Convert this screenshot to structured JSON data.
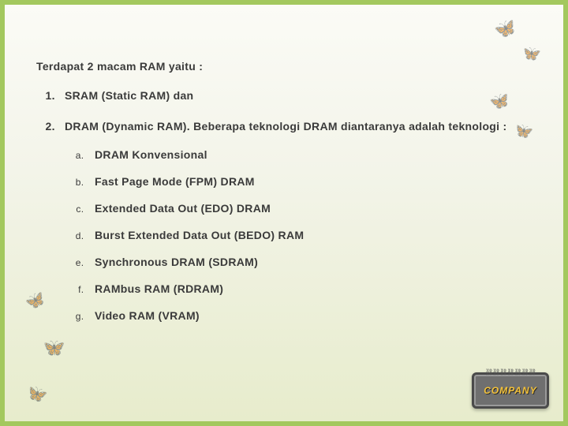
{
  "heading": "Terdapat 2 macam RAM yaitu :",
  "main_items": [
    {
      "text": "SRAM (Static RAM) dan"
    },
    {
      "text": "DRAM (Dynamic RAM). Beberapa teknologi DRAM diantaranya adalah teknologi :"
    }
  ],
  "sub_items": [
    {
      "text": "DRAM Konvensional"
    },
    {
      "text": "Fast Page Mode (FPM) DRAM"
    },
    {
      "text": "Extended Data Out (EDO) DRAM"
    },
    {
      "text": "Burst Extended Data Out (BEDO) RAM"
    },
    {
      "text": "Synchronous DRAM (SDRAM)"
    },
    {
      "text": "RAMbus RAM (RDRAM)"
    },
    {
      "text": "Video RAM (VRAM)"
    }
  ],
  "badge_label": "COMPANY",
  "colors": {
    "border": "#a3c85e",
    "bg_top": "#fbfbf6",
    "bg_mid": "#f3f4e9",
    "bg_bottom": "#e7eccc",
    "text": "#3a3a3a",
    "badge_bg": "#6f6f6f",
    "badge_text": "#f4c23a"
  },
  "butterfly_glyph": "🦋"
}
